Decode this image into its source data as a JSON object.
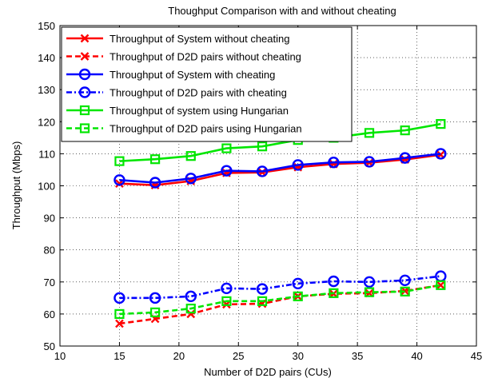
{
  "chart_data": {
    "type": "line",
    "title": "Thoughput Comparison with and without cheating",
    "xlabel": "Number of D2D pairs (CUs)",
    "ylabel": "Throughput (Mbps)",
    "xlim": [
      10,
      45
    ],
    "ylim": [
      50,
      150
    ],
    "xticks": [
      10,
      15,
      20,
      25,
      30,
      35,
      40,
      45
    ],
    "yticks": [
      50,
      60,
      70,
      80,
      90,
      100,
      110,
      120,
      130,
      140,
      150
    ],
    "grid": true,
    "legend_position": "top-left",
    "x": [
      15,
      18,
      21,
      24,
      27,
      30,
      33,
      36,
      39,
      42
    ],
    "series": [
      {
        "name": "Throughput of System without cheating",
        "color": "#ff0000",
        "line": "solid",
        "marker": "x",
        "values": [
          100.7,
          100.2,
          101.5,
          104.0,
          104.2,
          105.8,
          106.8,
          107.2,
          108.2,
          109.7
        ]
      },
      {
        "name": "Throughput of D2D pairs without cheating",
        "color": "#ff0000",
        "line": "dashed",
        "marker": "x",
        "values": [
          57.0,
          58.5,
          60.0,
          63.0,
          63.2,
          65.5,
          66.3,
          66.5,
          67.2,
          69.0
        ]
      },
      {
        "name": "Throughput of System with cheating",
        "color": "#0000ff",
        "line": "solid",
        "marker": "circle",
        "values": [
          101.8,
          101.0,
          102.3,
          104.7,
          104.5,
          106.5,
          107.3,
          107.5,
          108.7,
          110.0
        ]
      },
      {
        "name": "Throughput of D2D pairs with cheating",
        "color": "#0000ff",
        "line": "dashdot",
        "marker": "circle",
        "values": [
          65.0,
          65.0,
          65.5,
          68.0,
          67.8,
          69.5,
          70.2,
          70.0,
          70.5,
          71.8
        ]
      },
      {
        "name": "Throughput of system using Hungarian",
        "color": "#00e600",
        "line": "solid",
        "marker": "square",
        "values": [
          107.7,
          108.3,
          109.3,
          111.7,
          112.3,
          114.3,
          115.0,
          116.5,
          117.3,
          119.3
        ]
      },
      {
        "name": "Throughput of D2D pairs using Hungarian",
        "color": "#00e600",
        "line": "dashed",
        "marker": "square",
        "values": [
          60.0,
          60.5,
          61.7,
          64.0,
          64.0,
          65.5,
          66.5,
          66.8,
          67.0,
          69.0
        ]
      }
    ]
  }
}
